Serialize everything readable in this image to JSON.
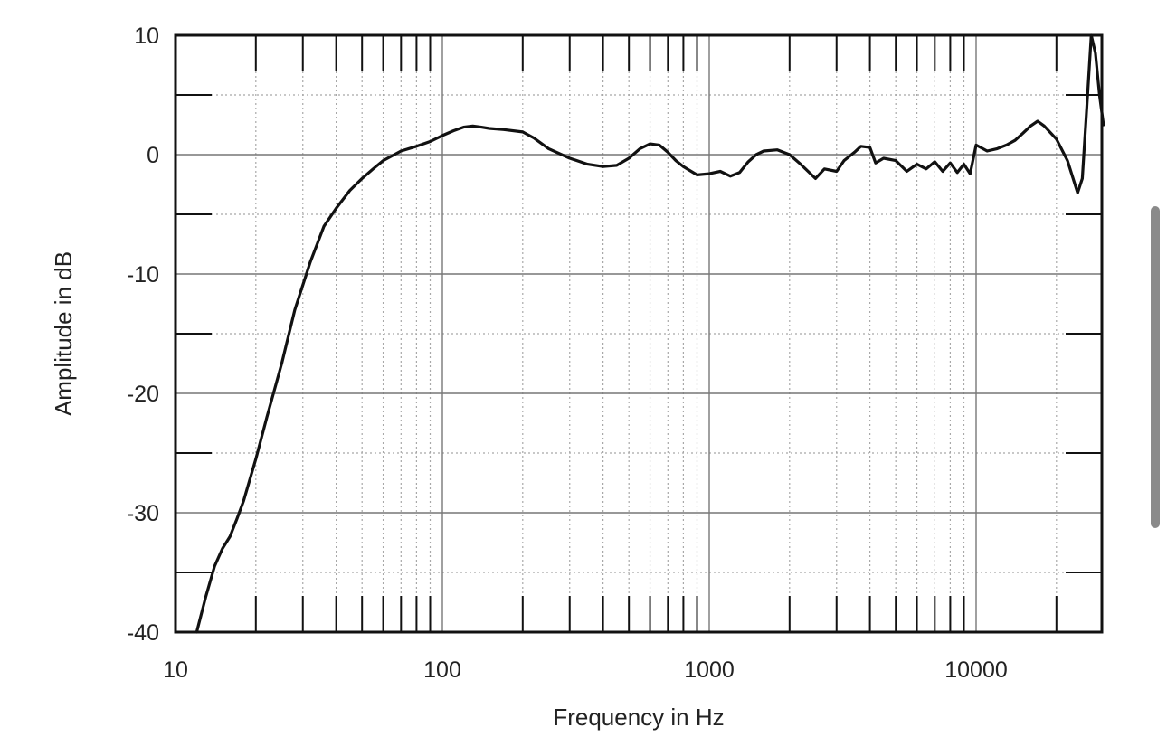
{
  "chart_data": {
    "type": "line",
    "title": "",
    "xlabel": "Frequency in Hz",
    "ylabel": "Amplitude in dB",
    "x_scale": "log",
    "xlim": [
      10,
      30000
    ],
    "ylim": [
      -40,
      10
    ],
    "x_ticks": [
      10,
      100,
      1000,
      10000
    ],
    "x_tick_labels": [
      "10",
      "100",
      "1000",
      "10000"
    ],
    "y_ticks": [
      10,
      0,
      -10,
      -20,
      -30,
      -40
    ],
    "y_tick_labels": [
      "10",
      "0",
      "-10",
      "-20",
      "-30",
      "-40"
    ],
    "grid": true,
    "legend": "none",
    "line_color": "#111111",
    "series": [
      {
        "x": [
          12,
          13,
          14,
          15,
          16,
          17,
          18,
          20,
          22,
          25,
          28,
          32,
          36,
          40,
          45,
          50,
          55,
          60,
          70,
          80,
          90,
          100,
          110,
          120,
          130,
          140,
          150,
          170,
          200,
          220,
          250,
          300,
          350,
          400,
          450,
          500,
          550,
          600,
          650,
          700,
          750,
          800,
          900,
          1000,
          1100,
          1200,
          1300,
          1400,
          1500,
          1600,
          1800,
          2000,
          2200,
          2500,
          2700,
          3000,
          3200,
          3500,
          3700,
          4000,
          4200,
          4500,
          5000,
          5500,
          6000,
          6500,
          7000,
          7500,
          8000,
          8500,
          9000,
          9500,
          10000,
          11000,
          12000,
          13000,
          14000,
          15000,
          16000,
          17000,
          18000,
          20000,
          22000,
          24000,
          25000,
          26000,
          27000,
          28000,
          29000,
          30000
        ],
        "y": [
          -40,
          -37,
          -34.5,
          -33,
          -32,
          -30.5,
          -29,
          -25.5,
          -22,
          -17.5,
          -13,
          -9,
          -6,
          -4.5,
          -3,
          -2,
          -1.2,
          -0.5,
          0.3,
          0.7,
          1.1,
          1.6,
          2,
          2.3,
          2.4,
          2.3,
          2.2,
          2.1,
          1.9,
          1.4,
          0.5,
          -0.3,
          -0.8,
          -1,
          -0.9,
          -0.3,
          0.5,
          0.9,
          0.8,
          0.2,
          -0.5,
          -1,
          -1.7,
          -1.6,
          -1.4,
          -1.8,
          -1.5,
          -0.6,
          0,
          0.3,
          0.4,
          0,
          -0.8,
          -2,
          -1.2,
          -1.4,
          -0.5,
          0.2,
          0.7,
          0.6,
          -0.7,
          -0.3,
          -0.5,
          -1.4,
          -0.8,
          -1.2,
          -0.6,
          -1.4,
          -0.7,
          -1.5,
          -0.8,
          -1.6,
          0.8,
          0.3,
          0.5,
          0.8,
          1.2,
          1.8,
          2.4,
          2.8,
          2.4,
          1.3,
          -0.5,
          -3.2,
          -2,
          4,
          10,
          8.5,
          5,
          2.5
        ]
      }
    ]
  }
}
